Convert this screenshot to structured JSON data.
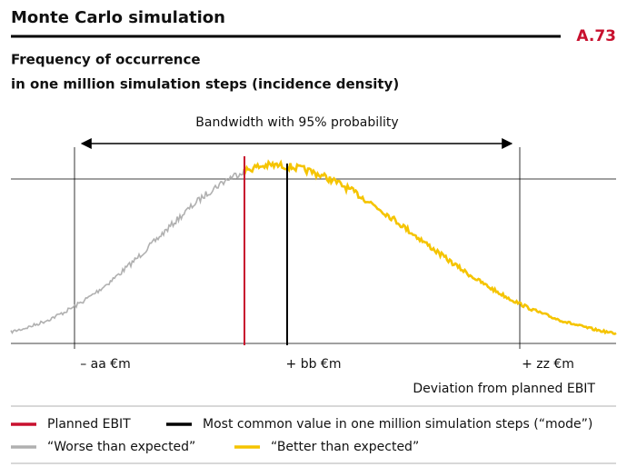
{
  "title": "Monte Carlo simulation",
  "code": "A.73",
  "subtitle": [
    "Frequency of occurrence",
    "in one million simulation steps (incidence density)"
  ],
  "bandwidth_label": "Bandwidth with 95% probability",
  "x_labels": [
    "– aa €m",
    "+ bb €m",
    "+ zz €m"
  ],
  "x_axis_title": "Deviation from planned EBIT",
  "legend": [
    {
      "label": "Planned EBIT",
      "color": "#c8102e"
    },
    {
      "label": "Most common value in one million simulation steps (“mode”)",
      "color": "#000000"
    },
    {
      "label": "“Worse than expected”",
      "color": "#b0b0b0"
    },
    {
      "label": "“Better than expected”",
      "color": "#f5c400"
    }
  ]
}
